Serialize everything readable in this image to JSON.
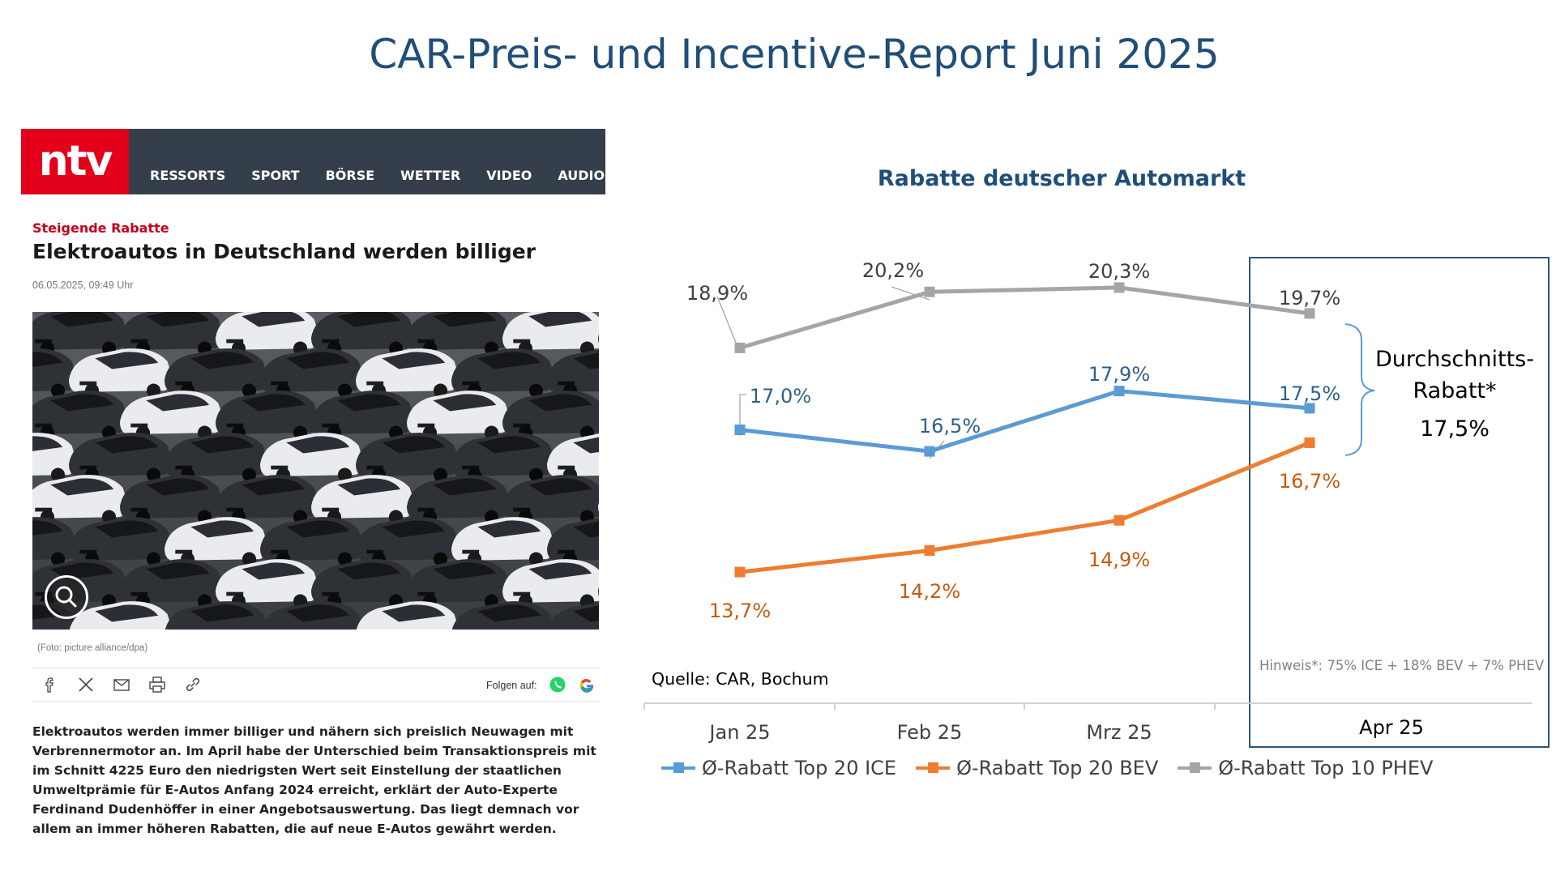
{
  "slide": {
    "title": "CAR-Preis- und Incentive-Report Juni 2025"
  },
  "article": {
    "logo": "ntv",
    "nav": [
      "RESSORTS",
      "SPORT",
      "BÖRSE",
      "WETTER",
      "VIDEO",
      "AUDIO"
    ],
    "kicker": "Steigende Rabatte",
    "headline": "Elektroautos in Deutschland werden billiger",
    "date": "06.05.2025, 09:49 Uhr",
    "caption": "(Foto: picture alliance/dpa)",
    "follow_label": "Folgen auf:",
    "share_icons": [
      "facebook-icon",
      "x-icon",
      "mail-icon",
      "print-icon",
      "link-icon"
    ],
    "body": "Elektroautos werden immer billiger und nähern sich preislich Neuwagen mit Verbrennermotor an. Im April habe der Unterschied beim Transaktionspreis mit im Schnitt 4225 Euro den niedrigsten Wert seit Einstellung der staatlichen Umweltprämie für E-Autos Anfang 2024 erreicht, erklärt der Auto-Experte Ferdinand Dudenhöffer in einer Angebotsauswertung. Das liegt demnach vor allem an immer höheren Rabatten, die auf neue E-Autos gewährt werden."
  },
  "chart_data": {
    "type": "line",
    "title": "Rabatte deutscher Automarkt",
    "categories": [
      "Jan 25",
      "Feb 25",
      "Mrz 25",
      "Apr 25"
    ],
    "series": [
      {
        "name": "Ø-Rabatt Top 20 ICE",
        "color": "#5b9bd5",
        "label_color": "#2e5f8a",
        "values": [
          17.0,
          16.5,
          17.9,
          17.5
        ],
        "labels": [
          "17,0%",
          "16,5%",
          "17,9%",
          "17,5%"
        ]
      },
      {
        "name": "Ø-Rabatt Top 20 BEV",
        "color": "#ed7d31",
        "label_color": "#c55a11",
        "values": [
          13.7,
          14.2,
          14.9,
          16.7
        ],
        "labels": [
          "13,7%",
          "14,2%",
          "14,9%",
          "16,7%"
        ]
      },
      {
        "name": "Ø-Rabatt Top 10 PHEV",
        "color": "#a5a5a5",
        "label_color": "#404040",
        "values": [
          18.9,
          20.2,
          20.3,
          19.7
        ],
        "labels": [
          "18,9%",
          "20,2%",
          "20,3%",
          "19,7%"
        ]
      }
    ],
    "highlight": {
      "category": "Apr 25",
      "label": "Durchschnitts-Rabatt*",
      "value": "17,5%",
      "note": "Hinweis*:  75% ICE + 18% BEV + 7% PHEV"
    },
    "source": "Quelle: CAR, Bochum",
    "legend_position": "bottom",
    "grid": false
  }
}
